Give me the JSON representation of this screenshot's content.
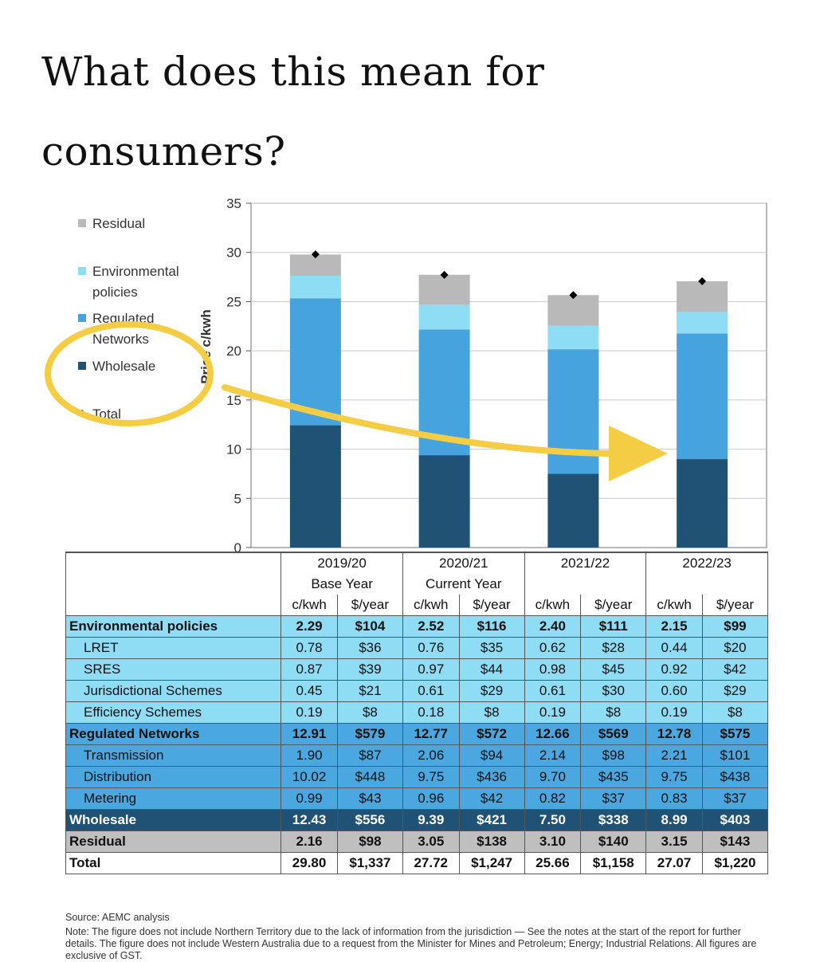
{
  "heading": "What does this mean for consumers?",
  "colors": {
    "residual": "#b9b9b9",
    "environmental": "#8fdcf5",
    "networks": "#46a3de",
    "wholesale": "#1f5274",
    "total_marker": "#000000",
    "annotation": "#f5cd45"
  },
  "chart_data": {
    "type": "bar",
    "stacked": true,
    "categories": [
      "2019/20",
      "2020/21",
      "2021/22",
      "2022/23"
    ],
    "ylabel": "Price c/kwh",
    "ylim": [
      0,
      35
    ],
    "yticks": [
      0,
      5,
      10,
      15,
      20,
      25,
      30,
      35
    ],
    "series": [
      {
        "name": "Wholesale",
        "values": [
          12.43,
          9.39,
          7.5,
          8.99
        ]
      },
      {
        "name": "Regulated Networks",
        "values": [
          12.91,
          12.77,
          12.66,
          12.78
        ]
      },
      {
        "name": "Environmental policies",
        "values": [
          2.29,
          2.52,
          2.4,
          2.15
        ]
      },
      {
        "name": "Residual",
        "values": [
          2.16,
          3.05,
          3.1,
          3.15
        ]
      }
    ],
    "total": {
      "name": "Total",
      "values": [
        29.8,
        27.72,
        25.66,
        27.07
      ]
    },
    "legend": [
      "Residual",
      "Environmental policies",
      "Regulated Networks",
      "Wholesale",
      "Total"
    ],
    "legend_position": "left"
  },
  "table": {
    "years": [
      {
        "year": "2019/20",
        "note": "Base Year"
      },
      {
        "year": "2020/21",
        "note": "Current Year"
      },
      {
        "year": "2021/22",
        "note": ""
      },
      {
        "year": "2022/23",
        "note": ""
      }
    ],
    "unit_ckwh": "c/kwh",
    "unit_year": "$/year",
    "rows": [
      {
        "label": "Environmental policies",
        "group": "env",
        "bold": true,
        "values": [
          "2.29",
          "$104",
          "2.52",
          "$116",
          "2.40",
          "$111",
          "2.15",
          "$99"
        ]
      },
      {
        "label": "LRET",
        "group": "env",
        "bold": false,
        "values": [
          "0.78",
          "$36",
          "0.76",
          "$35",
          "0.62",
          "$28",
          "0.44",
          "$20"
        ]
      },
      {
        "label": "SRES",
        "group": "env",
        "bold": false,
        "values": [
          "0.87",
          "$39",
          "0.97",
          "$44",
          "0.98",
          "$45",
          "0.92",
          "$42"
        ]
      },
      {
        "label": "Jurisdictional Schemes",
        "group": "env",
        "bold": false,
        "values": [
          "0.45",
          "$21",
          "0.61",
          "$29",
          "0.61",
          "$30",
          "0.60",
          "$29"
        ]
      },
      {
        "label": "Efficiency Schemes",
        "group": "env",
        "bold": false,
        "values": [
          "0.19",
          "$8",
          "0.18",
          "$8",
          "0.19",
          "$8",
          "0.19",
          "$8"
        ]
      },
      {
        "label": "Regulated Networks",
        "group": "net",
        "bold": true,
        "values": [
          "12.91",
          "$579",
          "12.77",
          "$572",
          "12.66",
          "$569",
          "12.78",
          "$575"
        ]
      },
      {
        "label": "Transmission",
        "group": "net",
        "bold": false,
        "values": [
          "1.90",
          "$87",
          "2.06",
          "$94",
          "2.14",
          "$98",
          "2.21",
          "$101"
        ]
      },
      {
        "label": "Distribution",
        "group": "net",
        "bold": false,
        "values": [
          "10.02",
          "$448",
          "9.75",
          "$436",
          "9.70",
          "$435",
          "9.75",
          "$438"
        ]
      },
      {
        "label": "Metering",
        "group": "net",
        "bold": false,
        "values": [
          "0.99",
          "$43",
          "0.96",
          "$42",
          "0.82",
          "$37",
          "0.83",
          "$37"
        ]
      },
      {
        "label": "Wholesale",
        "group": "whole",
        "bold": true,
        "values": [
          "12.43",
          "$556",
          "9.39",
          "$421",
          "7.50",
          "$338",
          "8.99",
          "$403"
        ]
      },
      {
        "label": "Residual",
        "group": "res",
        "bold": true,
        "values": [
          "2.16",
          "$98",
          "3.05",
          "$138",
          "3.10",
          "$140",
          "3.15",
          "$143"
        ]
      },
      {
        "label": "Total",
        "group": "total",
        "bold": true,
        "values": [
          "29.80",
          "$1,337",
          "27.72",
          "$1,247",
          "25.66",
          "$1,158",
          "27.07",
          "$1,220"
        ]
      }
    ]
  },
  "source": "Source: AEMC analysis",
  "note": "Note: The figure does not include Northern Territory due to the lack of information from the jurisdiction — See the notes at the start of the report for further details. The figure does not include Western Australia due to a request from the Minister for Mines and Petroleum; Energy; Industrial Relations. All figures are exclusive of GST."
}
